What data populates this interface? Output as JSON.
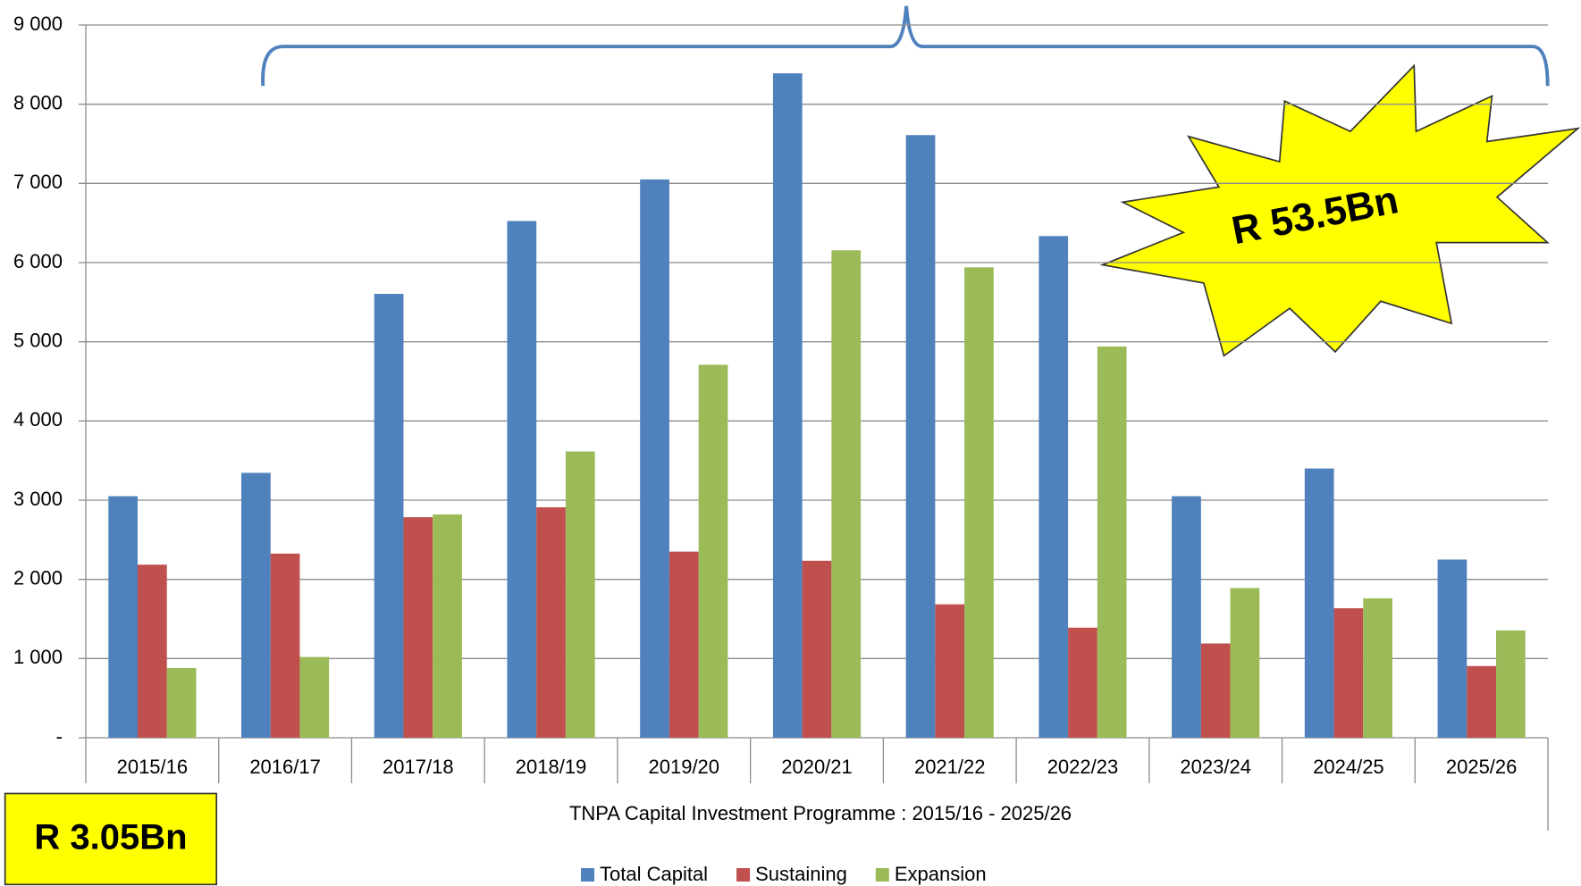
{
  "chart_data": {
    "type": "bar",
    "x_axis_title": "TNPA Capital Investment Programme : 2015/16 - 2025/26",
    "categories": [
      "2015/16",
      "2016/17",
      "2017/18",
      "2018/19",
      "2019/20",
      "2020/21",
      "2021/22",
      "2022/23",
      "2023/24",
      "2024/25",
      "2025/26"
    ],
    "series": [
      {
        "name": "Total Capital",
        "color": "#4f81bd",
        "values": [
          3050,
          3345,
          5605,
          6525,
          7050,
          8390,
          7610,
          6335,
          3050,
          3400,
          2250
        ]
      },
      {
        "name": "Sustaining",
        "color": "#c0504d",
        "values": [
          2185,
          2325,
          2785,
          2910,
          2350,
          2235,
          1685,
          1390,
          1190,
          1635,
          905
        ]
      },
      {
        "name": "Expansion",
        "color": "#9bbb59",
        "values": [
          880,
          1020,
          2820,
          3615,
          4710,
          6155,
          5940,
          4940,
          1890,
          1760,
          1355
        ]
      }
    ],
    "ylim": [
      0,
      9000
    ],
    "yticks": [
      {
        "value": 0,
        "label": "-"
      },
      {
        "value": 1000,
        "label": "1 000"
      },
      {
        "value": 2000,
        "label": "2 000"
      },
      {
        "value": 3000,
        "label": "3 000"
      },
      {
        "value": 4000,
        "label": "4 000"
      },
      {
        "value": 5000,
        "label": "5 000"
      },
      {
        "value": 6000,
        "label": "6 000"
      },
      {
        "value": 7000,
        "label": "7 000"
      },
      {
        "value": 8000,
        "label": "8 000"
      },
      {
        "value": 9000,
        "label": "9 000"
      }
    ],
    "grid": true,
    "legend": "bottom",
    "annotations": [
      "R 53.5Bn",
      "R 3.05Bn"
    ]
  }
}
